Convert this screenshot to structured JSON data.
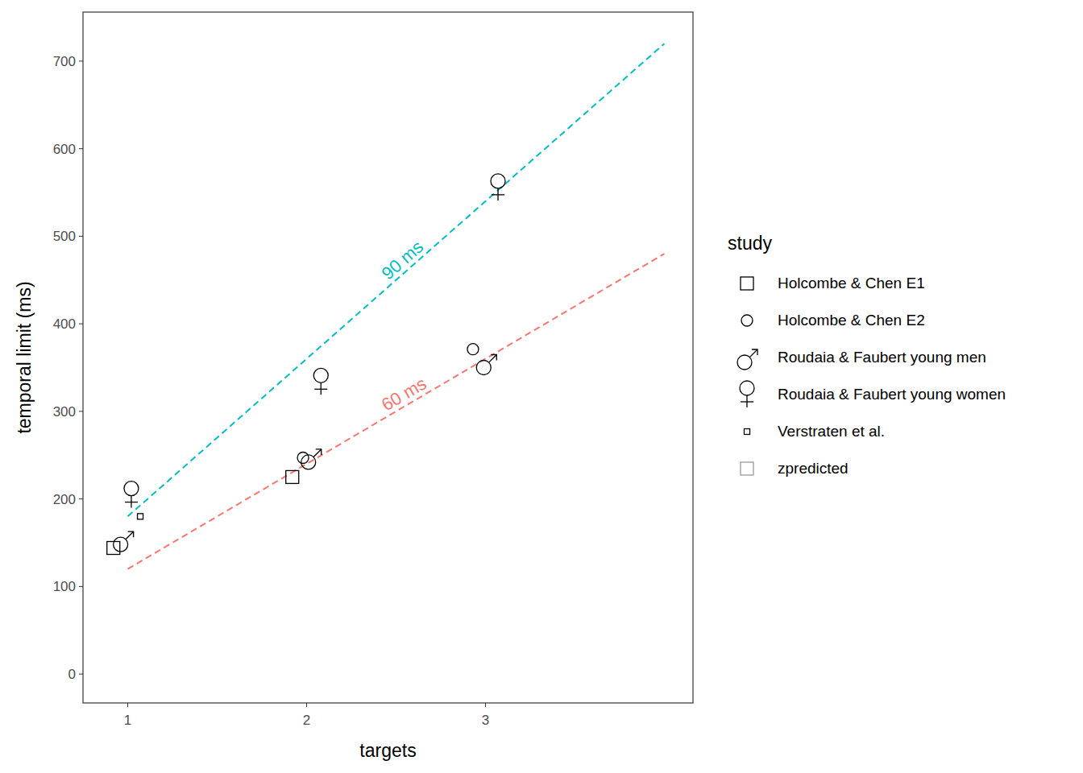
{
  "chart_data": {
    "type": "scatter",
    "x_label": "targets",
    "y_label": "temporal limit (ms)",
    "legend_title": "study",
    "legend": "right",
    "grid": false,
    "xlim": [
      0.75,
      4.16
    ],
    "ylim": [
      -33,
      756
    ],
    "xticks": [
      1,
      2,
      3
    ],
    "yticks": [
      0,
      100,
      200,
      300,
      400,
      500,
      600,
      700
    ],
    "series": [
      {
        "name": "Holcombe & Chen E1",
        "type": "scatter",
        "marker": "square",
        "color": "#000000",
        "x": [
          0.92,
          1.92
        ],
        "values": [
          144,
          225
        ]
      },
      {
        "name": "Holcombe & Chen E2",
        "type": "scatter",
        "marker": "circle",
        "color": "#000000",
        "x": [
          1.98,
          2.93
        ],
        "values": [
          247,
          371
        ]
      },
      {
        "name": "Roudaia & Faubert young men",
        "type": "scatter",
        "marker": "male",
        "color": "#000000",
        "x": [
          0.96,
          2.01,
          2.99
        ],
        "values": [
          148,
          242,
          350
        ]
      },
      {
        "name": "Roudaia & Faubert young women",
        "type": "scatter",
        "marker": "female",
        "color": "#000000",
        "x": [
          1.02,
          2.08,
          3.07
        ],
        "values": [
          212,
          341,
          563
        ]
      },
      {
        "name": "Verstraten et al.",
        "type": "scatter",
        "marker": "small-square",
        "color": "#000000",
        "x": [
          1.07
        ],
        "values": [
          180
        ]
      },
      {
        "name": "zpredicted",
        "type": "scatter",
        "marker": "square",
        "color": "#9a9a9a",
        "x": [],
        "values": []
      },
      {
        "name": "90 ms",
        "type": "line",
        "line_style": "dashed",
        "color": "#00BFC4",
        "x": [
          1,
          4
        ],
        "values": [
          180,
          720
        ]
      },
      {
        "name": "60 ms",
        "type": "line",
        "line_style": "dashed",
        "color": "#F8766D",
        "x": [
          1,
          4
        ],
        "values": [
          120,
          480
        ]
      }
    ]
  }
}
